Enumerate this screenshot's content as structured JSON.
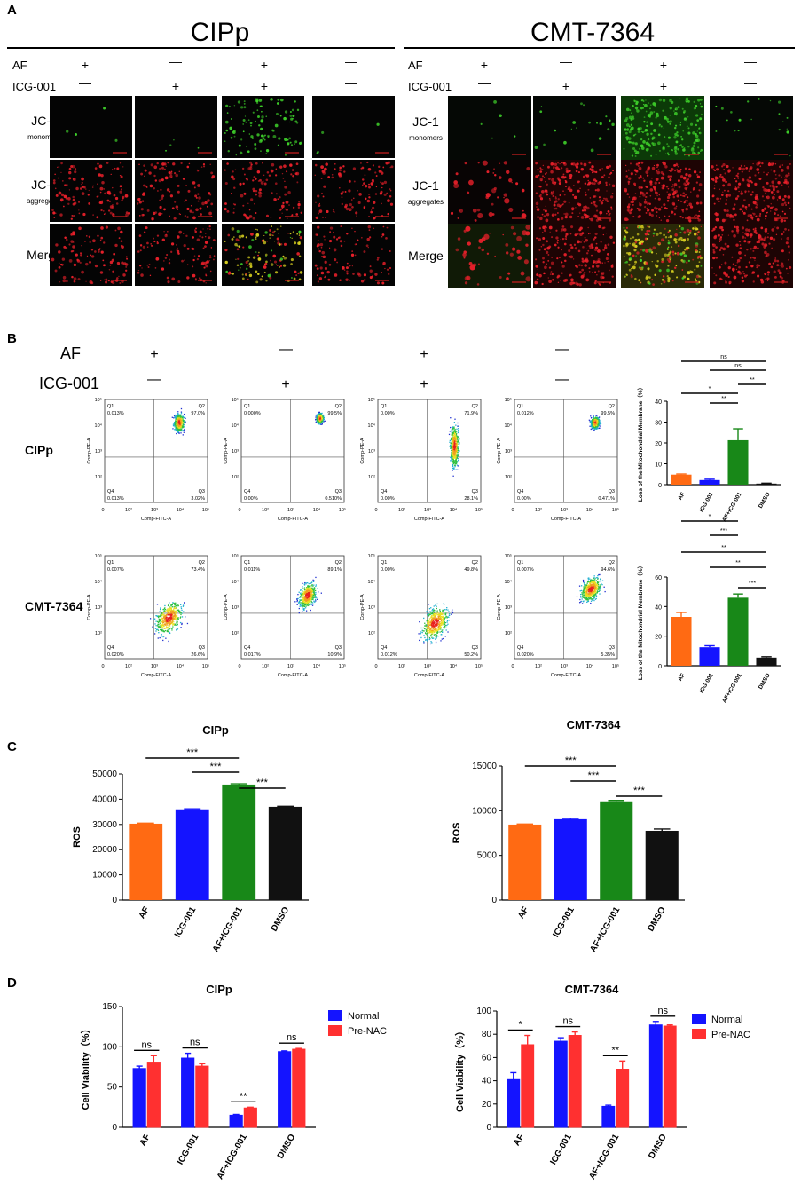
{
  "panels": {
    "A": "A",
    "B": "B",
    "C": "C",
    "D": "D"
  },
  "panel_a": {
    "left_title": "CIPp",
    "right_title": "CMT-7364",
    "treatments": [
      {
        "label": "AF",
        "signs": [
          "+",
          "—",
          "+",
          "—"
        ]
      },
      {
        "label": "ICG-001",
        "signs": [
          "—",
          "+",
          "+",
          "—"
        ]
      }
    ],
    "rows": [
      {
        "title": "JC-1",
        "subtitle": "monomers",
        "kind": "green"
      },
      {
        "title": "JC-1",
        "subtitle": "aggregates",
        "kind": "red"
      },
      {
        "title": "Merge",
        "subtitle": "",
        "kind": "merge"
      }
    ],
    "colors": {
      "background": "#050505",
      "green": "#3ecf2a",
      "red": "#e8202a",
      "yellow": "#d8d020"
    }
  },
  "panel_b": {
    "treatments": [
      {
        "label": "AF",
        "signs": [
          "+",
          "—",
          "+",
          "—"
        ]
      },
      {
        "label": "ICG-001",
        "signs": [
          "—",
          "+",
          "+",
          "—"
        ]
      }
    ],
    "flow_rows": [
      {
        "label": "CIPp",
        "plots": [
          {
            "q1": "0.013%",
            "q2": "97.0%",
            "q3": "3.02%",
            "q4": "0.013%"
          },
          {
            "q1": "0.000%",
            "q2": "99.5%",
            "q3": "0.510%",
            "q4": "0.00%"
          },
          {
            "q1": "0.00%",
            "q2": "71.9%",
            "q3": "28.1%",
            "q4": "0.00%"
          },
          {
            "q1": "0.012%",
            "q2": "99.5%",
            "q3": "0.471%",
            "q4": "0.00%"
          }
        ]
      },
      {
        "label": "CMT-7364",
        "plots": [
          {
            "q1": "0.007%",
            "q2": "73.4%",
            "q3": "26.6%",
            "q4": "0.020%"
          },
          {
            "q1": "0.011%",
            "q2": "89.1%",
            "q3": "10.9%",
            "q4": "0.017%"
          },
          {
            "q1": "0.00%",
            "q2": "49.8%",
            "q3": "50.2%",
            "q4": "0.012%"
          },
          {
            "q1": "0.007%",
            "q2": "94.6%",
            "q3": "5.35%",
            "q4": "0.020%"
          }
        ]
      }
    ],
    "axis": {
      "x": "Comp-FITC-A",
      "y": "Comp-PE-A",
      "ticks": [
        "0",
        "10²",
        "10³",
        "10⁴",
        "10⁵"
      ],
      "quadrants": [
        "Q1",
        "Q2",
        "Q3",
        "Q4"
      ]
    }
  },
  "panel_c": {},
  "panel_d": {
    "legend": [
      "Normal",
      "Pre-NAC"
    ]
  },
  "chart_data": [
    {
      "id": "B-CIPp",
      "type": "bar",
      "categories": [
        "AF",
        "ICG-001",
        "AF+ICG-001",
        "DMSO"
      ],
      "values": [
        4.8,
        2.2,
        21.3,
        0.5
      ],
      "errors": [
        0.3,
        0.4,
        5.5,
        0.2
      ],
      "colors": [
        "#ff6a13",
        "#1414ff",
        "#188818",
        "#111111"
      ],
      "ylim": [
        0,
        40
      ],
      "yticks": [
        "0",
        "10",
        "20",
        "30",
        "40"
      ],
      "ylabel": "Loss of the Mitochondrial Membrane（%）",
      "title": "",
      "significance": [
        {
          "from": 0,
          "to": 3,
          "label": "ns"
        },
        {
          "from": 1,
          "to": 3,
          "label": "ns"
        },
        {
          "from": 2,
          "to": 3,
          "label": "**"
        },
        {
          "from": 0,
          "to": 2,
          "label": "*"
        },
        {
          "from": 1,
          "to": 2,
          "label": "**"
        }
      ]
    },
    {
      "id": "B-CMT",
      "type": "bar",
      "categories": [
        "AF",
        "ICG-001",
        "AF+ICG-001",
        "DMSO"
      ],
      "values": [
        33,
        12.5,
        46,
        5.5
      ],
      "errors": [
        3,
        1,
        2.5,
        0.6
      ],
      "colors": [
        "#ff6a13",
        "#1414ff",
        "#188818",
        "#111111"
      ],
      "ylim": [
        0,
        60
      ],
      "yticks": [
        "0",
        "20",
        "40",
        "60"
      ],
      "ylabel": "Loss of the Mitochondrial Membrane（%）",
      "title": "",
      "significance": [
        {
          "from": 0,
          "to": 2,
          "label": "*"
        },
        {
          "from": 1,
          "to": 2,
          "label": "***"
        },
        {
          "from": 0,
          "to": 3,
          "label": "**"
        },
        {
          "from": 1,
          "to": 3,
          "label": "**"
        },
        {
          "from": 2,
          "to": 3,
          "label": "***"
        }
      ]
    },
    {
      "id": "C-CIPp",
      "type": "bar",
      "title": "CIPp",
      "categories": [
        "AF",
        "ICG-001",
        "AF+ICG-001",
        "DMSO"
      ],
      "values": [
        30300,
        36000,
        45800,
        37000
      ],
      "errors": [
        200,
        200,
        300,
        200
      ],
      "colors": [
        "#ff6a13",
        "#1414ff",
        "#188818",
        "#111111"
      ],
      "ylim": [
        0,
        50000
      ],
      "yticks": [
        "0",
        "10000",
        "20000",
        "30000",
        "40000",
        "50000"
      ],
      "ylabel": "ROS",
      "significance": [
        {
          "from": 0,
          "to": 2,
          "label": "***"
        },
        {
          "from": 1,
          "to": 2,
          "label": "***"
        },
        {
          "from": 2,
          "to": 3,
          "label": "***"
        }
      ]
    },
    {
      "id": "C-CMT",
      "type": "bar",
      "title": "CMT-7364",
      "categories": [
        "AF",
        "ICG-001",
        "AF+ICG-001",
        "DMSO"
      ],
      "values": [
        8450,
        9050,
        11050,
        7750
      ],
      "errors": [
        60,
        80,
        100,
        200
      ],
      "colors": [
        "#ff6a13",
        "#1414ff",
        "#188818",
        "#111111"
      ],
      "ylim": [
        0,
        15000
      ],
      "yticks": [
        "0",
        "5000",
        "10000",
        "15000"
      ],
      "ylabel": "ROS",
      "significance": [
        {
          "from": 0,
          "to": 2,
          "label": "***"
        },
        {
          "from": 1,
          "to": 2,
          "label": "***"
        },
        {
          "from": 2,
          "to": 3,
          "label": "***"
        }
      ]
    },
    {
      "id": "D-CIPp",
      "type": "bar",
      "title": "CIPp",
      "categories": [
        "AF",
        "ICG-001",
        "AF+ICG-001",
        "DMSO"
      ],
      "ylim": [
        0,
        150
      ],
      "yticks": [
        "0",
        "50",
        "100",
        "150"
      ],
      "ylabel": "Cell Viability（%）",
      "series": [
        {
          "name": "Normal",
          "color": "#1414ff",
          "values": [
            73,
            86,
            15,
            94
          ],
          "errors": [
            3,
            6,
            1,
            1
          ]
        },
        {
          "name": "Pre-NAC",
          "color": "#ff3030",
          "values": [
            81,
            76,
            24,
            97
          ],
          "errors": [
            8,
            3,
            1,
            1
          ]
        }
      ],
      "significance": [
        "ns",
        "ns",
        "**",
        "ns"
      ]
    },
    {
      "id": "D-CMT",
      "type": "bar",
      "title": "CMT-7364",
      "categories": [
        "AF",
        "ICG-001",
        "AF+ICG-001",
        "DMSO"
      ],
      "ylim": [
        0,
        100
      ],
      "yticks": [
        "0",
        "20",
        "40",
        "60",
        "80",
        "100"
      ],
      "ylabel": "Cell Viability（%）",
      "series": [
        {
          "name": "Normal",
          "color": "#1414ff",
          "values": [
            41,
            74,
            18,
            88
          ],
          "errors": [
            6,
            3,
            1,
            3
          ]
        },
        {
          "name": "Pre-NAC",
          "color": "#ff3030",
          "values": [
            71,
            79,
            50,
            87
          ],
          "errors": [
            8,
            3,
            7,
            1
          ]
        }
      ],
      "significance": [
        "*",
        "ns",
        "**",
        "ns"
      ]
    }
  ]
}
